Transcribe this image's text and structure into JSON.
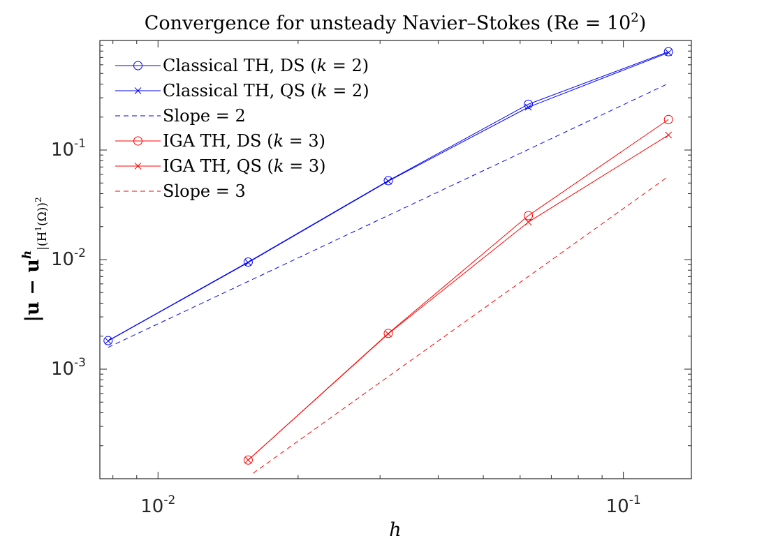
{
  "chart_data": {
    "type": "line",
    "scale": "loglog",
    "title": "Convergence for unsteady Navier–Stokes (Re = 10",
    "title_sup": "2",
    "title_end": ")",
    "xlabel": "h",
    "ylabel": "|u − u",
    "ylabel_sup": "h",
    "ylabel_sub": "|(H",
    "ylabel_sub2": "1",
    "ylabel_sub3": "(Ω))",
    "ylabel_sub4": "2",
    "xlim": [
      0.0075,
      0.14
    ],
    "ylim": [
      0.0001,
      1.0
    ],
    "xticks": [
      {
        "value": 0.01,
        "base": "10",
        "exp": "-2"
      },
      {
        "value": 0.1,
        "base": "10",
        "exp": "-1"
      }
    ],
    "yticks": [
      {
        "value": 0.001,
        "base": "10",
        "exp": "-3"
      },
      {
        "value": 0.01,
        "base": "10",
        "exp": "-2"
      },
      {
        "value": 0.1,
        "base": "10",
        "exp": "-1"
      }
    ],
    "legend_position": "top-left",
    "series": [
      {
        "name": "Classical TH, DS (k = 2)",
        "label": "Classical TH, DS (",
        "label_var": "k",
        "label_end": " = 2)",
        "color": "#0000ff",
        "style": "solid",
        "marker": "circle",
        "x": [
          0.0078125,
          0.015625,
          0.03125,
          0.0625,
          0.125
        ],
        "y": [
          0.00182,
          0.0095,
          0.0525,
          0.262,
          0.79
        ]
      },
      {
        "name": "Classical TH, QS (k = 2)",
        "label": "Classical TH, QS (",
        "label_var": "k",
        "label_end": " = 2)",
        "color": "#0000ff",
        "style": "solid",
        "marker": "x",
        "x": [
          0.0078125,
          0.015625,
          0.03125,
          0.0625,
          0.125
        ],
        "y": [
          0.00181,
          0.0094,
          0.052,
          0.246,
          0.775
        ]
      },
      {
        "name": "Slope = 2",
        "label": "Slope = 2",
        "label_var": "",
        "label_end": "",
        "color": "#0000ff",
        "style": "dashed",
        "marker": "none",
        "x": [
          0.0078125,
          0.125
        ],
        "y": [
          0.00158,
          0.405
        ]
      },
      {
        "name": "IGA TH, DS (k = 3)",
        "label": "IGA TH, DS (",
        "label_var": "k",
        "label_end": " = 3)",
        "color": "#ff0000",
        "style": "solid",
        "marker": "circle",
        "x": [
          0.015625,
          0.03125,
          0.0625,
          0.125
        ],
        "y": [
          0.000148,
          0.00212,
          0.0252,
          0.19
        ]
      },
      {
        "name": "IGA TH, QS (k = 3)",
        "label": "IGA TH, QS (",
        "label_var": "k",
        "label_end": " = 3)",
        "color": "#ff0000",
        "style": "solid",
        "marker": "x",
        "x": [
          0.015625,
          0.03125,
          0.0625,
          0.125
        ],
        "y": [
          0.000148,
          0.0021,
          0.022,
          0.137
        ]
      },
      {
        "name": "Slope = 3",
        "label": "Slope = 3",
        "label_var": "",
        "label_end": "",
        "color": "#ff0000",
        "style": "dashed",
        "marker": "none",
        "x": [
          0.016,
          0.125
        ],
        "y": [
          0.000112,
          0.0575
        ]
      }
    ]
  }
}
